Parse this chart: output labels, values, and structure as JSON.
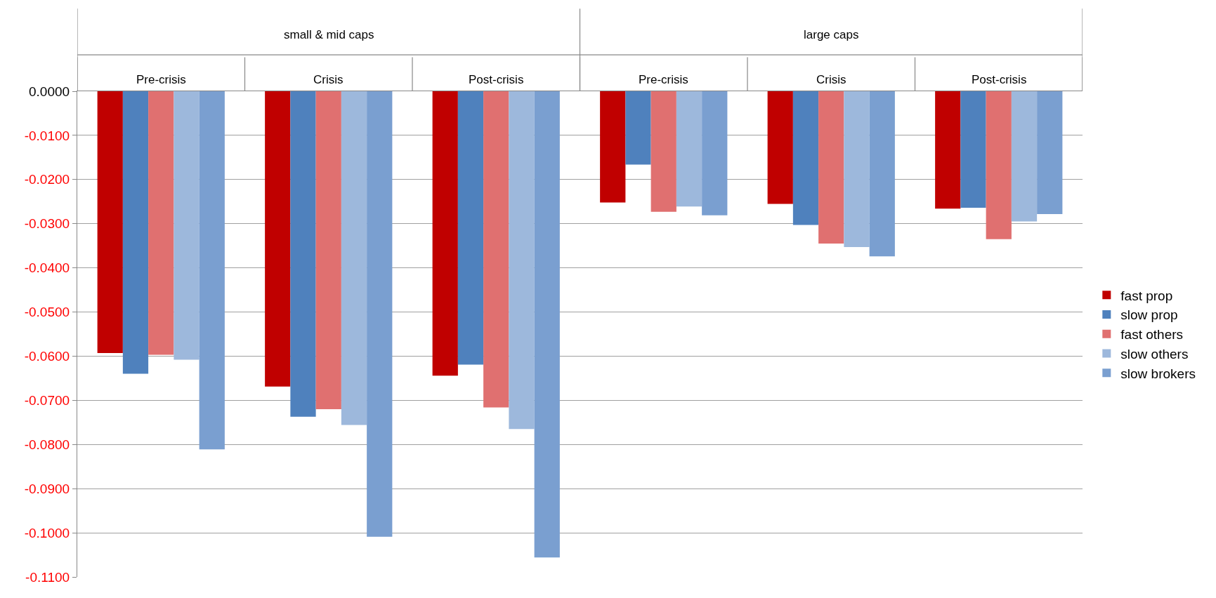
{
  "chart_data": {
    "type": "bar",
    "categories": [
      "Pre-crisis",
      "Crisis",
      "Post-crisis",
      "Pre-crisis",
      "Crisis",
      "Post-crisis"
    ],
    "annotations": [
      "small & mid caps",
      "large caps"
    ],
    "series": [
      {
        "name": "fast prop",
        "color": "#c00000",
        "values": [
          -0.0593,
          -0.0669,
          -0.0644,
          -0.0252,
          -0.0255,
          -0.0266
        ]
      },
      {
        "name": "slow prop",
        "color": "#4f81bd",
        "values": [
          -0.064,
          -0.0737,
          -0.0619,
          -0.0166,
          -0.0303,
          -0.0264
        ]
      },
      {
        "name": "fast others",
        "color": "#e07070",
        "values": [
          -0.0597,
          -0.072,
          -0.0716,
          -0.0273,
          -0.0345,
          -0.0335
        ]
      },
      {
        "name": "slow others",
        "color": "#9db8dc",
        "values": [
          -0.0608,
          -0.0756,
          -0.0765,
          -0.0261,
          -0.0353,
          -0.0295
        ]
      },
      {
        "name": "slow brokers",
        "color": "#7a9fd0",
        "values": [
          -0.0811,
          -0.1009,
          -0.1056,
          -0.0281,
          -0.0374,
          -0.0278
        ]
      }
    ],
    "ylim": [
      -0.11,
      0
    ],
    "yticks": [
      {
        "value": 0,
        "label": "0.0000"
      },
      {
        "value": -0.01,
        "label": "-0.0100"
      },
      {
        "value": -0.02,
        "label": "-0.0200"
      },
      {
        "value": -0.03,
        "label": "-0.0300"
      },
      {
        "value": -0.04,
        "label": "-0.0400"
      },
      {
        "value": -0.05,
        "label": "-0.0500"
      },
      {
        "value": -0.06,
        "label": "-0.0600"
      },
      {
        "value": -0.07,
        "label": "-0.0700"
      },
      {
        "value": -0.08,
        "label": "-0.0800"
      },
      {
        "value": -0.09,
        "label": "-0.0900"
      },
      {
        "value": -0.1,
        "label": "-0.1000"
      },
      {
        "value": -0.11,
        "label": "-0.1100"
      }
    ],
    "grid": "y",
    "legend": "right"
  }
}
